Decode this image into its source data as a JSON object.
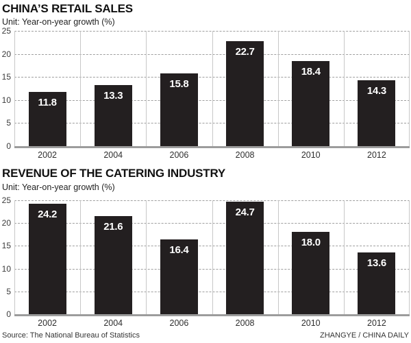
{
  "chart_data": [
    {
      "type": "bar",
      "title": "CHINA’S RETAIL SALES",
      "subtitle": "Unit: Year-on-year growth (%)",
      "categories": [
        "2002",
        "2004",
        "2006",
        "2008",
        "2010",
        "2012"
      ],
      "values": [
        11.8,
        13.3,
        15.8,
        22.7,
        18.4,
        14.3
      ],
      "value_labels": [
        "11.8",
        "13.3",
        "15.8",
        "22.7",
        "18.4",
        "14.3"
      ],
      "ylim": [
        0,
        25
      ],
      "yticks": [
        0,
        5,
        10,
        15,
        20,
        25
      ],
      "grid": "horizontal dashed lines at each ytick, solid vertical section dividers",
      "legend": "none",
      "bar_color": "#231f20",
      "value_label_color": "#ffffff"
    },
    {
      "type": "bar",
      "title": "REVENUE OF THE CATERING INDUSTRY",
      "subtitle": "Unit: Year-on-year growth (%)",
      "categories": [
        "2002",
        "2004",
        "2006",
        "2008",
        "2010",
        "2012"
      ],
      "values": [
        24.2,
        21.6,
        16.4,
        24.7,
        18.0,
        13.6
      ],
      "value_labels": [
        "24.2",
        "21.6",
        "16.4",
        "24.7",
        "18.0",
        "13.6"
      ],
      "ylim": [
        0,
        25
      ],
      "yticks": [
        0,
        5,
        10,
        15,
        20,
        25
      ],
      "grid": "horizontal dashed lines at each ytick, solid vertical section dividers",
      "legend": "none",
      "bar_color": "#231f20",
      "value_label_color": "#ffffff"
    }
  ],
  "footer": {
    "source": "Source: The National Bureau of Statistics",
    "credit": "ZHANGYE / CHINA DAILY"
  },
  "colors": {
    "bar": "#231f20",
    "dashed_grid": "#9e9e9e",
    "vertical_divider": "#c7c7c7",
    "baseline_axis": "#9c9c9c",
    "background": "#ffffff"
  }
}
